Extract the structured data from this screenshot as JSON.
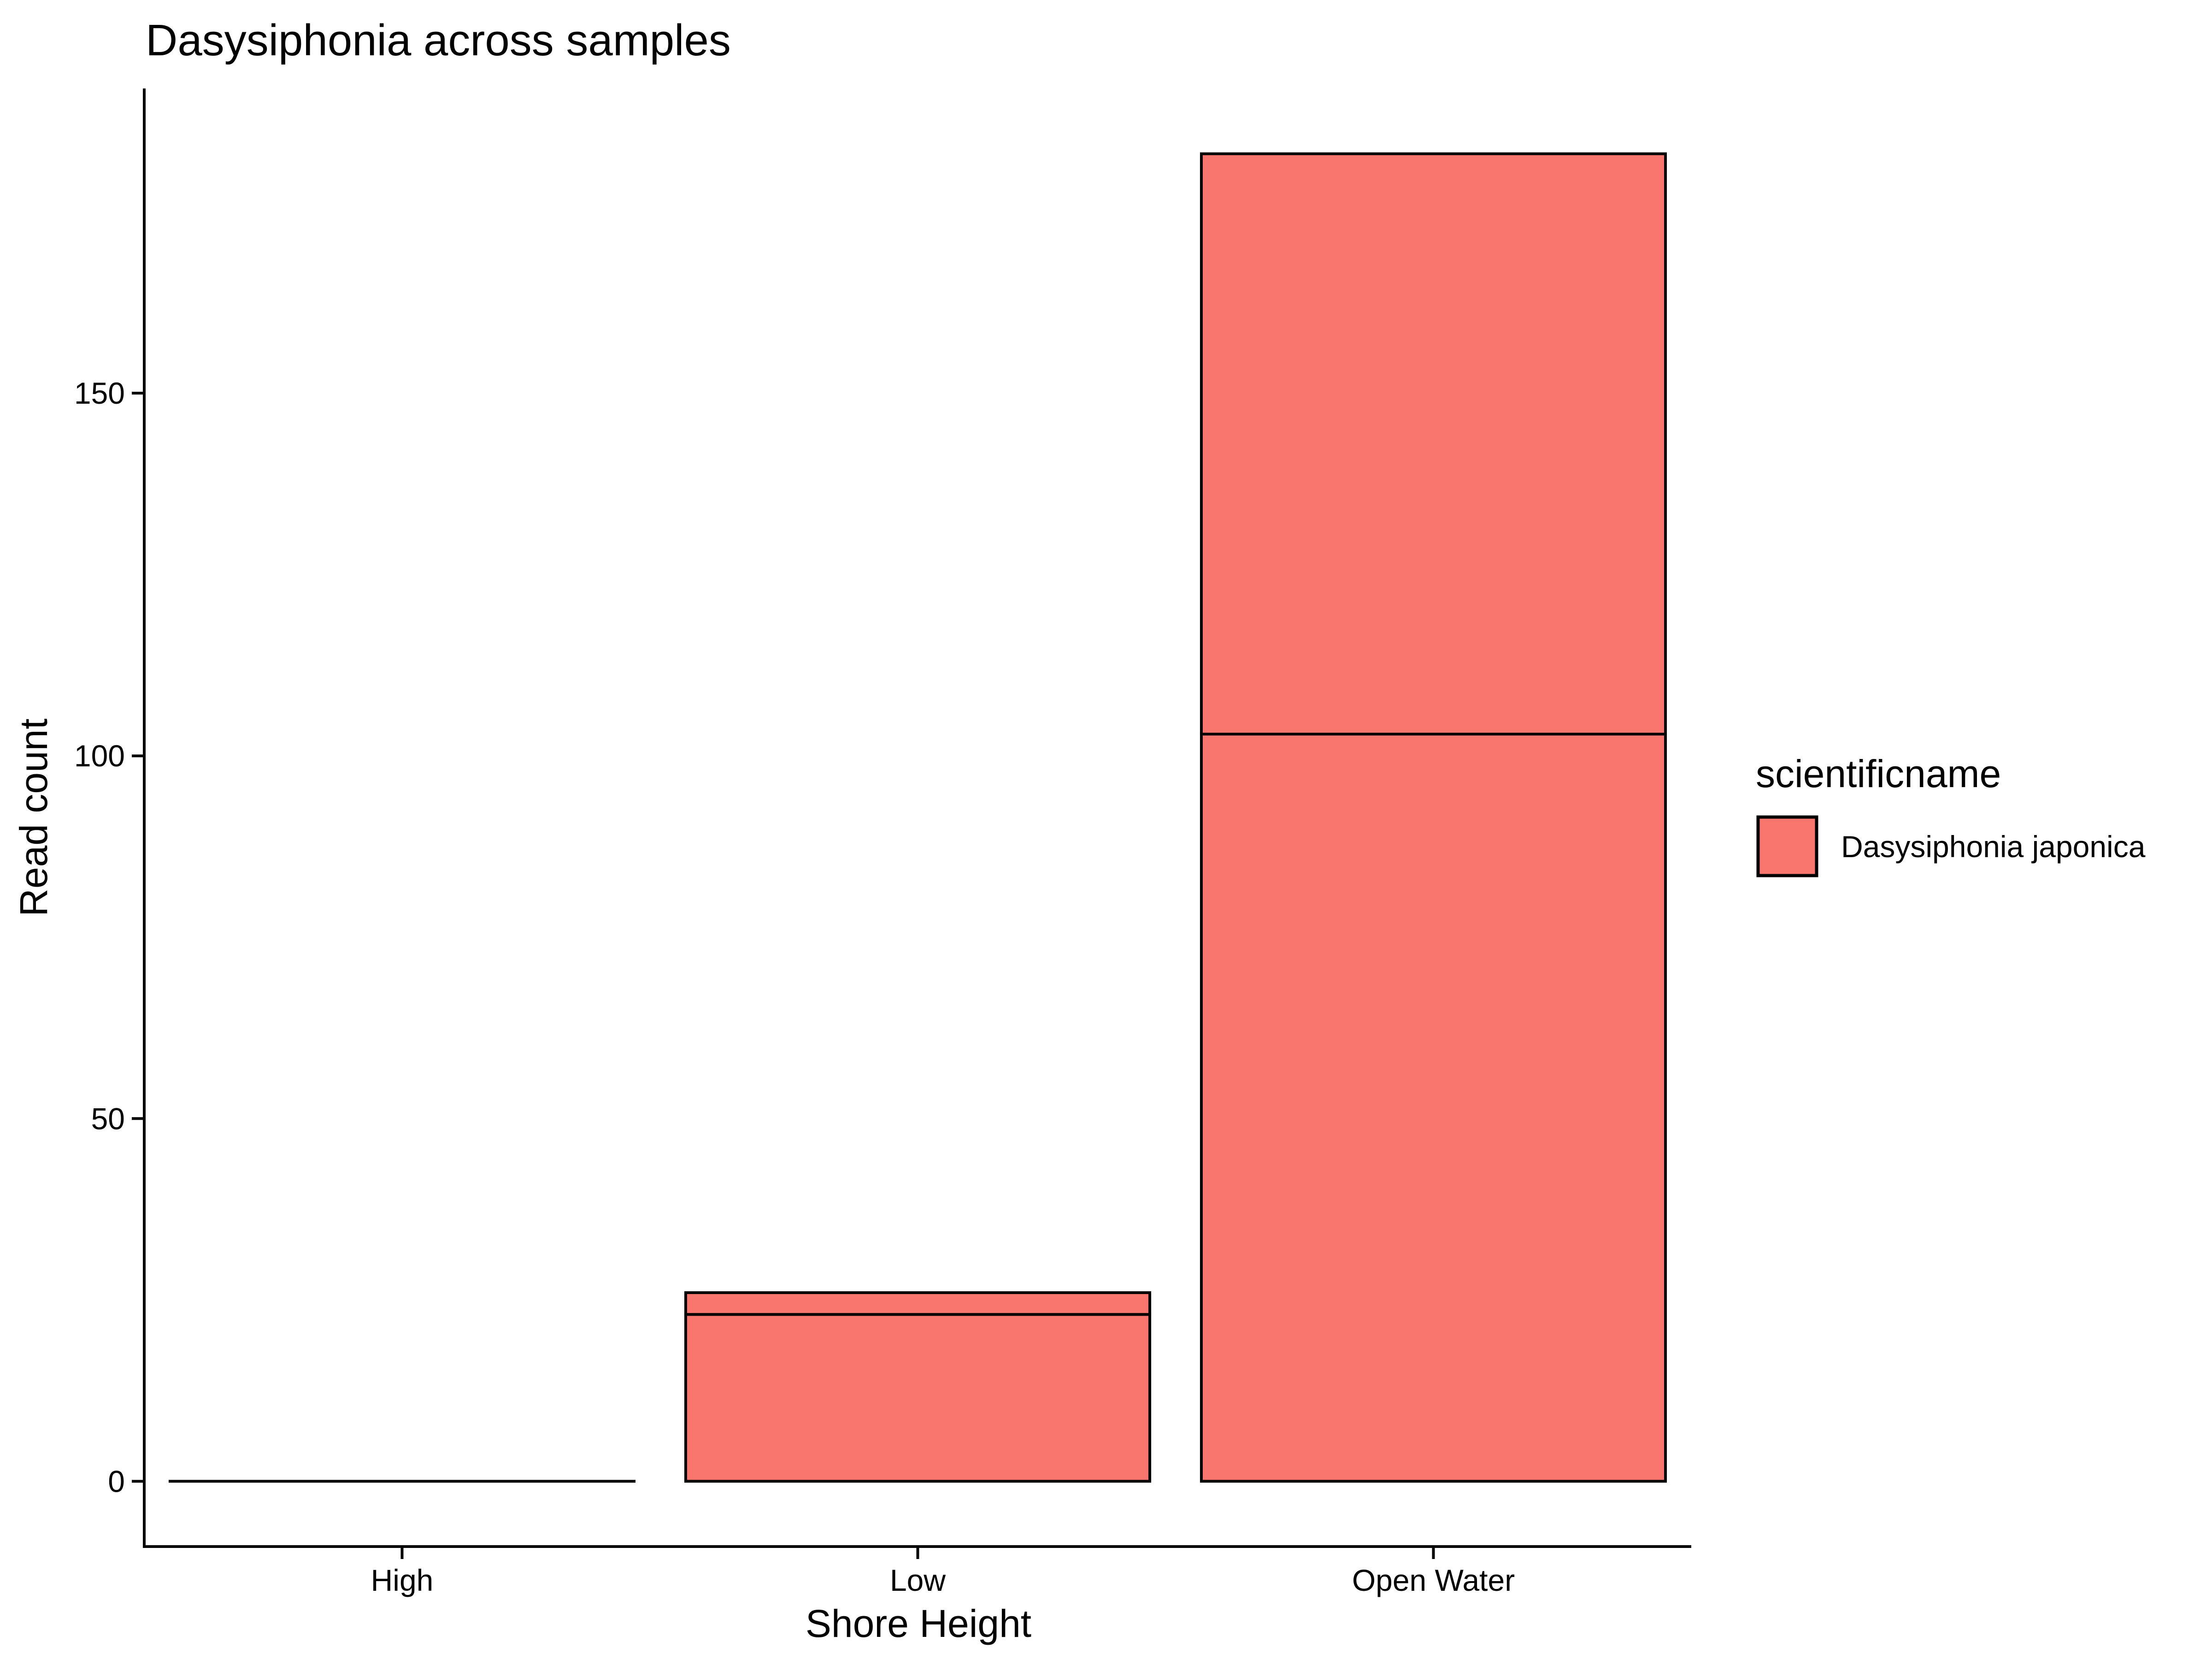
{
  "chart_data": {
    "type": "bar",
    "stacked": true,
    "title": "Dasysiphonia across samples",
    "xlabel": "Shore Height",
    "ylabel": "Read count",
    "categories": [
      "High",
      "Low",
      "Open Water"
    ],
    "yticks": [
      0,
      50,
      100,
      150
    ],
    "ylim": [
      -9,
      192
    ],
    "grid": false,
    "legend": {
      "title": "scientificname",
      "position": "right",
      "entries": [
        "Dasysiphonia japonica"
      ]
    },
    "series": [
      {
        "name": "Dasysiphonia japonica",
        "color": "#F8766D",
        "segments": [
          [
            0
          ],
          [
            23,
            3
          ],
          [
            103,
            80
          ]
        ]
      }
    ],
    "totals": [
      0,
      26,
      183
    ]
  }
}
